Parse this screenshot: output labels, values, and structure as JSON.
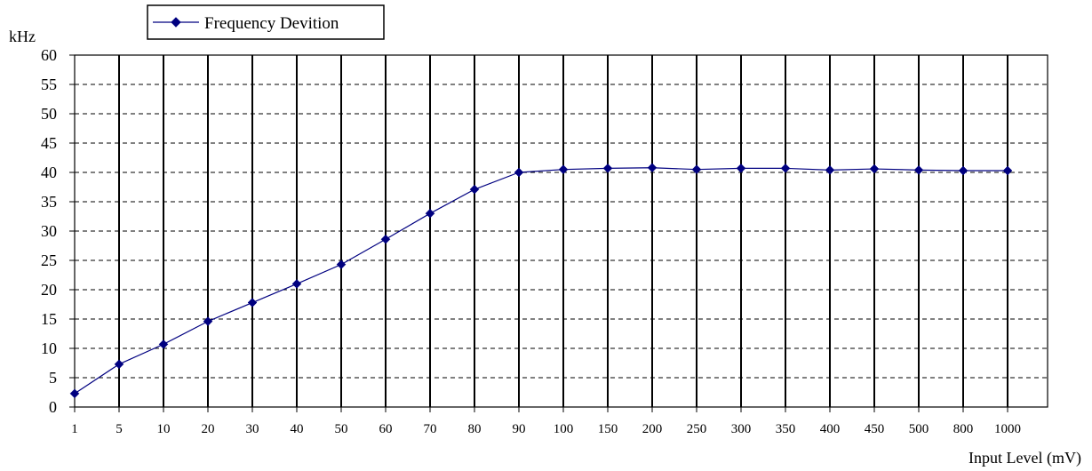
{
  "chart_data": {
    "type": "line",
    "title": "",
    "xlabel": "Input Level (mV)",
    "ylabel": "kHz",
    "ylim": [
      0,
      60
    ],
    "yticks": [
      "0",
      "5",
      "10",
      "15",
      "20",
      "25",
      "30",
      "35",
      "40",
      "45",
      "50",
      "55",
      "60"
    ],
    "categories": [
      "1",
      "5",
      "10",
      "20",
      "30",
      "40",
      "50",
      "60",
      "70",
      "80",
      "90",
      "100",
      "150",
      "200",
      "250",
      "300",
      "350",
      "400",
      "450",
      "500",
      "800",
      "1000"
    ],
    "series": [
      {
        "name": "Frequency Devition",
        "color": "#000080",
        "marker": "diamond",
        "values": [
          2.3,
          7.3,
          10.7,
          14.6,
          17.8,
          21.0,
          24.3,
          28.6,
          33.0,
          37.1,
          40.0,
          40.5,
          40.7,
          40.8,
          40.5,
          40.7,
          40.7,
          40.4,
          40.6,
          40.4,
          40.3,
          40.3
        ]
      }
    ],
    "grid": {
      "vertical": "solid",
      "horizontal": "dashed"
    },
    "legend": {
      "position": "top-left"
    }
  }
}
